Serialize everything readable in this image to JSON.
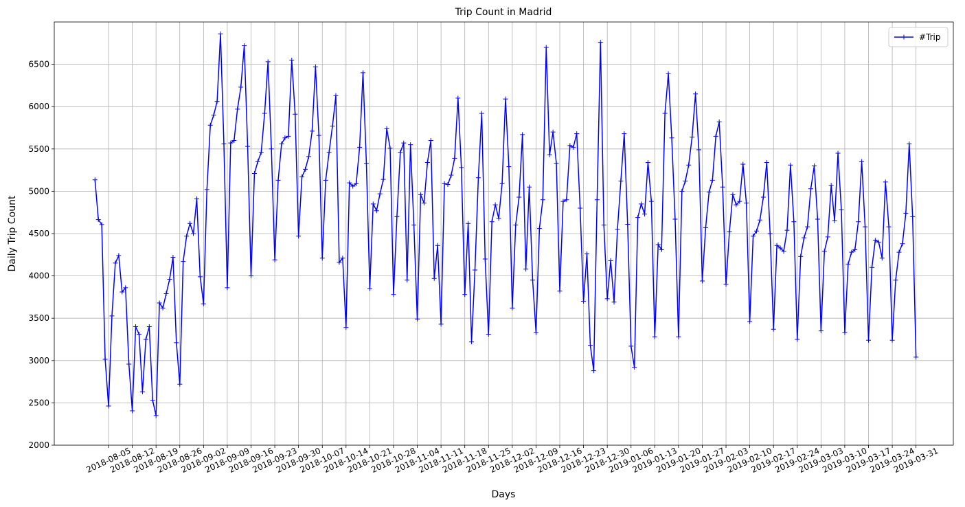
{
  "chart_data": {
    "type": "line",
    "title": "Trip Count in Madrid",
    "x_label": "Days",
    "y_label": "Daily Trip Count",
    "x": [
      "2018-08-01",
      "2018-08-02",
      "2018-08-03",
      "2018-08-04",
      "2018-08-05",
      "2018-08-06",
      "2018-08-07",
      "2018-08-08",
      "2018-08-09",
      "2018-08-10",
      "2018-08-11",
      "2018-08-12",
      "2018-08-13",
      "2018-08-14",
      "2018-08-15",
      "2018-08-16",
      "2018-08-17",
      "2018-08-18",
      "2018-08-19",
      "2018-08-20",
      "2018-08-21",
      "2018-08-22",
      "2018-08-23",
      "2018-08-24",
      "2018-08-25",
      "2018-08-26",
      "2018-08-27",
      "2018-08-28",
      "2018-08-29",
      "2018-08-30",
      "2018-08-31",
      "2018-09-01",
      "2018-09-02",
      "2018-09-03",
      "2018-09-04",
      "2018-09-05",
      "2018-09-06",
      "2018-09-07",
      "2018-09-08",
      "2018-09-09",
      "2018-09-10",
      "2018-09-11",
      "2018-09-12",
      "2018-09-13",
      "2018-09-14",
      "2018-09-15",
      "2018-09-16",
      "2018-09-17",
      "2018-09-18",
      "2018-09-19",
      "2018-09-20",
      "2018-09-21",
      "2018-09-22",
      "2018-09-23",
      "2018-09-24",
      "2018-09-25",
      "2018-09-26",
      "2018-09-27",
      "2018-09-28",
      "2018-09-29",
      "2018-09-30",
      "2018-10-01",
      "2018-10-02",
      "2018-10-03",
      "2018-10-04",
      "2018-10-05",
      "2018-10-06",
      "2018-10-07",
      "2018-10-08",
      "2018-10-09",
      "2018-10-10",
      "2018-10-11",
      "2018-10-12",
      "2018-10-13",
      "2018-10-14",
      "2018-10-15",
      "2018-10-16",
      "2018-10-17",
      "2018-10-18",
      "2018-10-19",
      "2018-10-20",
      "2018-10-21",
      "2018-10-22",
      "2018-10-23",
      "2018-10-24",
      "2018-10-25",
      "2018-10-26",
      "2018-10-27",
      "2018-10-28",
      "2018-10-29",
      "2018-10-30",
      "2018-10-31",
      "2018-11-01",
      "2018-11-02",
      "2018-11-03",
      "2018-11-04",
      "2018-11-05",
      "2018-11-06",
      "2018-11-07",
      "2018-11-08",
      "2018-11-09",
      "2018-11-10",
      "2018-11-11",
      "2018-11-12",
      "2018-11-13",
      "2018-11-14",
      "2018-11-15",
      "2018-11-16",
      "2018-11-17",
      "2018-11-18",
      "2018-11-19",
      "2018-11-20",
      "2018-11-21",
      "2018-11-22",
      "2018-11-23",
      "2018-11-24",
      "2018-11-25",
      "2018-11-26",
      "2018-11-27",
      "2018-11-28",
      "2018-11-29",
      "2018-11-30",
      "2018-12-01",
      "2018-12-02",
      "2018-12-03",
      "2018-12-04",
      "2018-12-05",
      "2018-12-06",
      "2018-12-07",
      "2018-12-08",
      "2018-12-09",
      "2018-12-10",
      "2018-12-11",
      "2018-12-12",
      "2018-12-13",
      "2018-12-14",
      "2018-12-15",
      "2018-12-16",
      "2018-12-17",
      "2018-12-18",
      "2018-12-19",
      "2018-12-20",
      "2018-12-21",
      "2018-12-22",
      "2018-12-23",
      "2018-12-24",
      "2018-12-25",
      "2018-12-26",
      "2018-12-27",
      "2018-12-28",
      "2018-12-29",
      "2018-12-30",
      "2018-12-31",
      "2019-01-01",
      "2019-01-02",
      "2019-01-03",
      "2019-01-04",
      "2019-01-05",
      "2019-01-06",
      "2019-01-07",
      "2019-01-08",
      "2019-01-09",
      "2019-01-10",
      "2019-01-11",
      "2019-01-12",
      "2019-01-13",
      "2019-01-14",
      "2019-01-15",
      "2019-01-16",
      "2019-01-17",
      "2019-01-18",
      "2019-01-19",
      "2019-01-20",
      "2019-01-21",
      "2019-01-22",
      "2019-01-23",
      "2019-01-24",
      "2019-01-25",
      "2019-01-26",
      "2019-01-27",
      "2019-01-28",
      "2019-01-29",
      "2019-01-30",
      "2019-01-31",
      "2019-02-01",
      "2019-02-02",
      "2019-02-03",
      "2019-02-04",
      "2019-02-05",
      "2019-02-06",
      "2019-02-07",
      "2019-02-08",
      "2019-02-09",
      "2019-02-10",
      "2019-02-11",
      "2019-02-12",
      "2019-02-13",
      "2019-02-14",
      "2019-02-15",
      "2019-02-16",
      "2019-02-17",
      "2019-02-18",
      "2019-02-19",
      "2019-02-20",
      "2019-02-21",
      "2019-02-22",
      "2019-02-23",
      "2019-02-24",
      "2019-02-25",
      "2019-02-26",
      "2019-02-27",
      "2019-02-28",
      "2019-03-01",
      "2019-03-02",
      "2019-03-03",
      "2019-03-04",
      "2019-03-05",
      "2019-03-06",
      "2019-03-07",
      "2019-03-08",
      "2019-03-09",
      "2019-03-10",
      "2019-03-11",
      "2019-03-12",
      "2019-03-13",
      "2019-03-14",
      "2019-03-15",
      "2019-03-16",
      "2019-03-17",
      "2019-03-18",
      "2019-03-19",
      "2019-03-20",
      "2019-03-21",
      "2019-03-22",
      "2019-03-23",
      "2019-03-24",
      "2019-03-25",
      "2019-03-26",
      "2019-03-27",
      "2019-03-28",
      "2019-03-29",
      "2019-03-30",
      "2019-03-31"
    ],
    "series": [
      {
        "name": "#Trip",
        "color": "#0000ff",
        "marker": "+",
        "values": [
          5135,
          4665,
          4607,
          3015,
          2463,
          3527,
          4152,
          4240,
          3810,
          3860,
          2958,
          2406,
          3400,
          3310,
          2630,
          3250,
          3400,
          2530,
          2350,
          3680,
          3620,
          3790,
          3960,
          4220,
          3210,
          2720,
          4170,
          4470,
          4620,
          4500,
          4910,
          3990,
          3670,
          5020,
          5780,
          5900,
          6060,
          6860,
          5560,
          3860,
          5570,
          5600,
          5970,
          6230,
          6720,
          5530,
          4000,
          5210,
          5350,
          5460,
          5920,
          6530,
          5500,
          4190,
          5130,
          5560,
          5630,
          5650,
          6550,
          5910,
          4470,
          5170,
          5260,
          5410,
          5710,
          6470,
          5660,
          4210,
          5130,
          5460,
          5770,
          6130,
          4160,
          4210,
          3390,
          5100,
          5060,
          5090,
          5520,
          6400,
          5330,
          3850,
          4850,
          4770,
          4970,
          5140,
          5740,
          5510,
          3780,
          4700,
          5460,
          5570,
          3950,
          5550,
          4600,
          3490,
          4960,
          4860,
          5340,
          5600,
          3970,
          4360,
          3430,
          5090,
          5080,
          5190,
          5390,
          6100,
          5280,
          3780,
          4620,
          3220,
          4070,
          5160,
          5920,
          4200,
          3310,
          4640,
          4840,
          4680,
          5090,
          6090,
          5290,
          3620,
          4600,
          4930,
          5670,
          4080,
          5050,
          3950,
          3330,
          4560,
          4900,
          6700,
          5430,
          5700,
          5330,
          3820,
          4880,
          4900,
          5540,
          5520,
          5680,
          4800,
          3700,
          4260,
          3180,
          2880,
          4900,
          6760,
          4600,
          3730,
          4180,
          3690,
          4550,
          5120,
          5680,
          4610,
          3170,
          2920,
          4690,
          4850,
          4730,
          5340,
          4880,
          3280,
          4370,
          4310,
          5920,
          6390,
          5630,
          4670,
          3280,
          5000,
          5120,
          5310,
          5640,
          6150,
          5490,
          3940,
          4570,
          4990,
          5130,
          5650,
          5820,
          5050,
          3900,
          4520,
          4960,
          4840,
          4880,
          5320,
          4860,
          3460,
          4470,
          4530,
          4660,
          4930,
          5340,
          4500,
          3370,
          4360,
          4330,
          4290,
          4540,
          5310,
          4640,
          3250,
          4230,
          4450,
          4580,
          5030,
          5300,
          4670,
          3350,
          4290,
          4460,
          5070,
          4650,
          5450,
          4780,
          3330,
          4140,
          4280,
          4310,
          4640,
          5350,
          4580,
          3240,
          4100,
          4420,
          4400,
          4210,
          5110,
          4580,
          3240,
          3950,
          4280,
          4380,
          4740,
          5560,
          4700,
          3040
        ]
      }
    ],
    "xlim": [
      "2018-07-20",
      "2019-04-11"
    ],
    "xticks": [
      "2018-08-05",
      "2018-08-12",
      "2018-08-19",
      "2018-08-26",
      "2018-09-02",
      "2018-09-09",
      "2018-09-16",
      "2018-09-23",
      "2018-09-30",
      "2018-10-07",
      "2018-10-14",
      "2018-10-21",
      "2018-10-28",
      "2018-11-04",
      "2018-11-11",
      "2018-11-18",
      "2018-11-25",
      "2018-12-02",
      "2018-12-09",
      "2018-12-16",
      "2018-12-23",
      "2018-12-30",
      "2019-01-06",
      "2019-01-13",
      "2019-01-20",
      "2019-01-27",
      "2019-02-03",
      "2019-02-10",
      "2019-02-17",
      "2019-02-24",
      "2019-03-03",
      "2019-03-10",
      "2019-03-17",
      "2019-03-24",
      "2019-03-31"
    ],
    "ylim": [
      2000,
      7000
    ],
    "yticks": [
      2000,
      2500,
      3000,
      3500,
      4000,
      4500,
      5000,
      5500,
      6000,
      6500
    ],
    "grid": true,
    "legend_position": "upper-right"
  }
}
